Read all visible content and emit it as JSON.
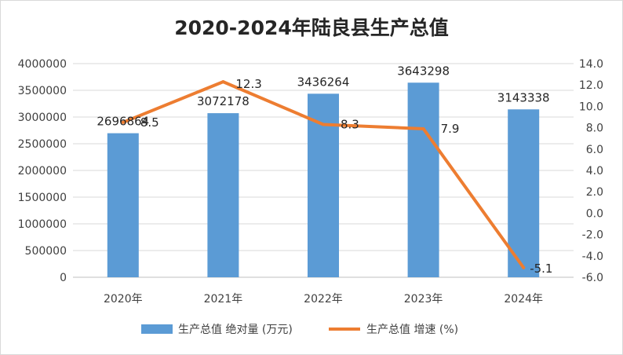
{
  "chart_data": {
    "type": "bar+line",
    "title": "2020-2024年陆良县生产总值",
    "categories": [
      "2020年",
      "2021年",
      "2022年",
      "2023年",
      "2024年"
    ],
    "series": [
      {
        "name": "生产总值 绝对量 (万元)",
        "type": "bar",
        "axis": "left",
        "color": "#5b9bd5",
        "values": [
          2696864,
          3072178,
          3436264,
          3643298,
          3143338
        ],
        "labels": [
          "2696864",
          "3072178",
          "3436264",
          "3643298",
          "3143338"
        ]
      },
      {
        "name": "生产总值 增速 (%)",
        "type": "line",
        "axis": "right",
        "color": "#ed7d31",
        "values": [
          8.5,
          12.3,
          8.3,
          7.9,
          -5.1
        ],
        "labels": [
          "8.5",
          "12.3",
          "8.3",
          "7.9",
          "-5.1"
        ]
      }
    ],
    "y_left": {
      "range": [
        0,
        4000000
      ],
      "ticks": [
        "0",
        "500000",
        "1000000",
        "1500000",
        "2000000",
        "2500000",
        "3000000",
        "3500000",
        "4000000"
      ]
    },
    "y_right": {
      "range": [
        -6,
        14
      ],
      "ticks": [
        "-6.0",
        "-4.0",
        "-2.0",
        "0.0",
        "2.0",
        "4.0",
        "6.0",
        "8.0",
        "10.0",
        "12.0",
        "14.0"
      ]
    },
    "grid": true,
    "legend": "bottom"
  }
}
